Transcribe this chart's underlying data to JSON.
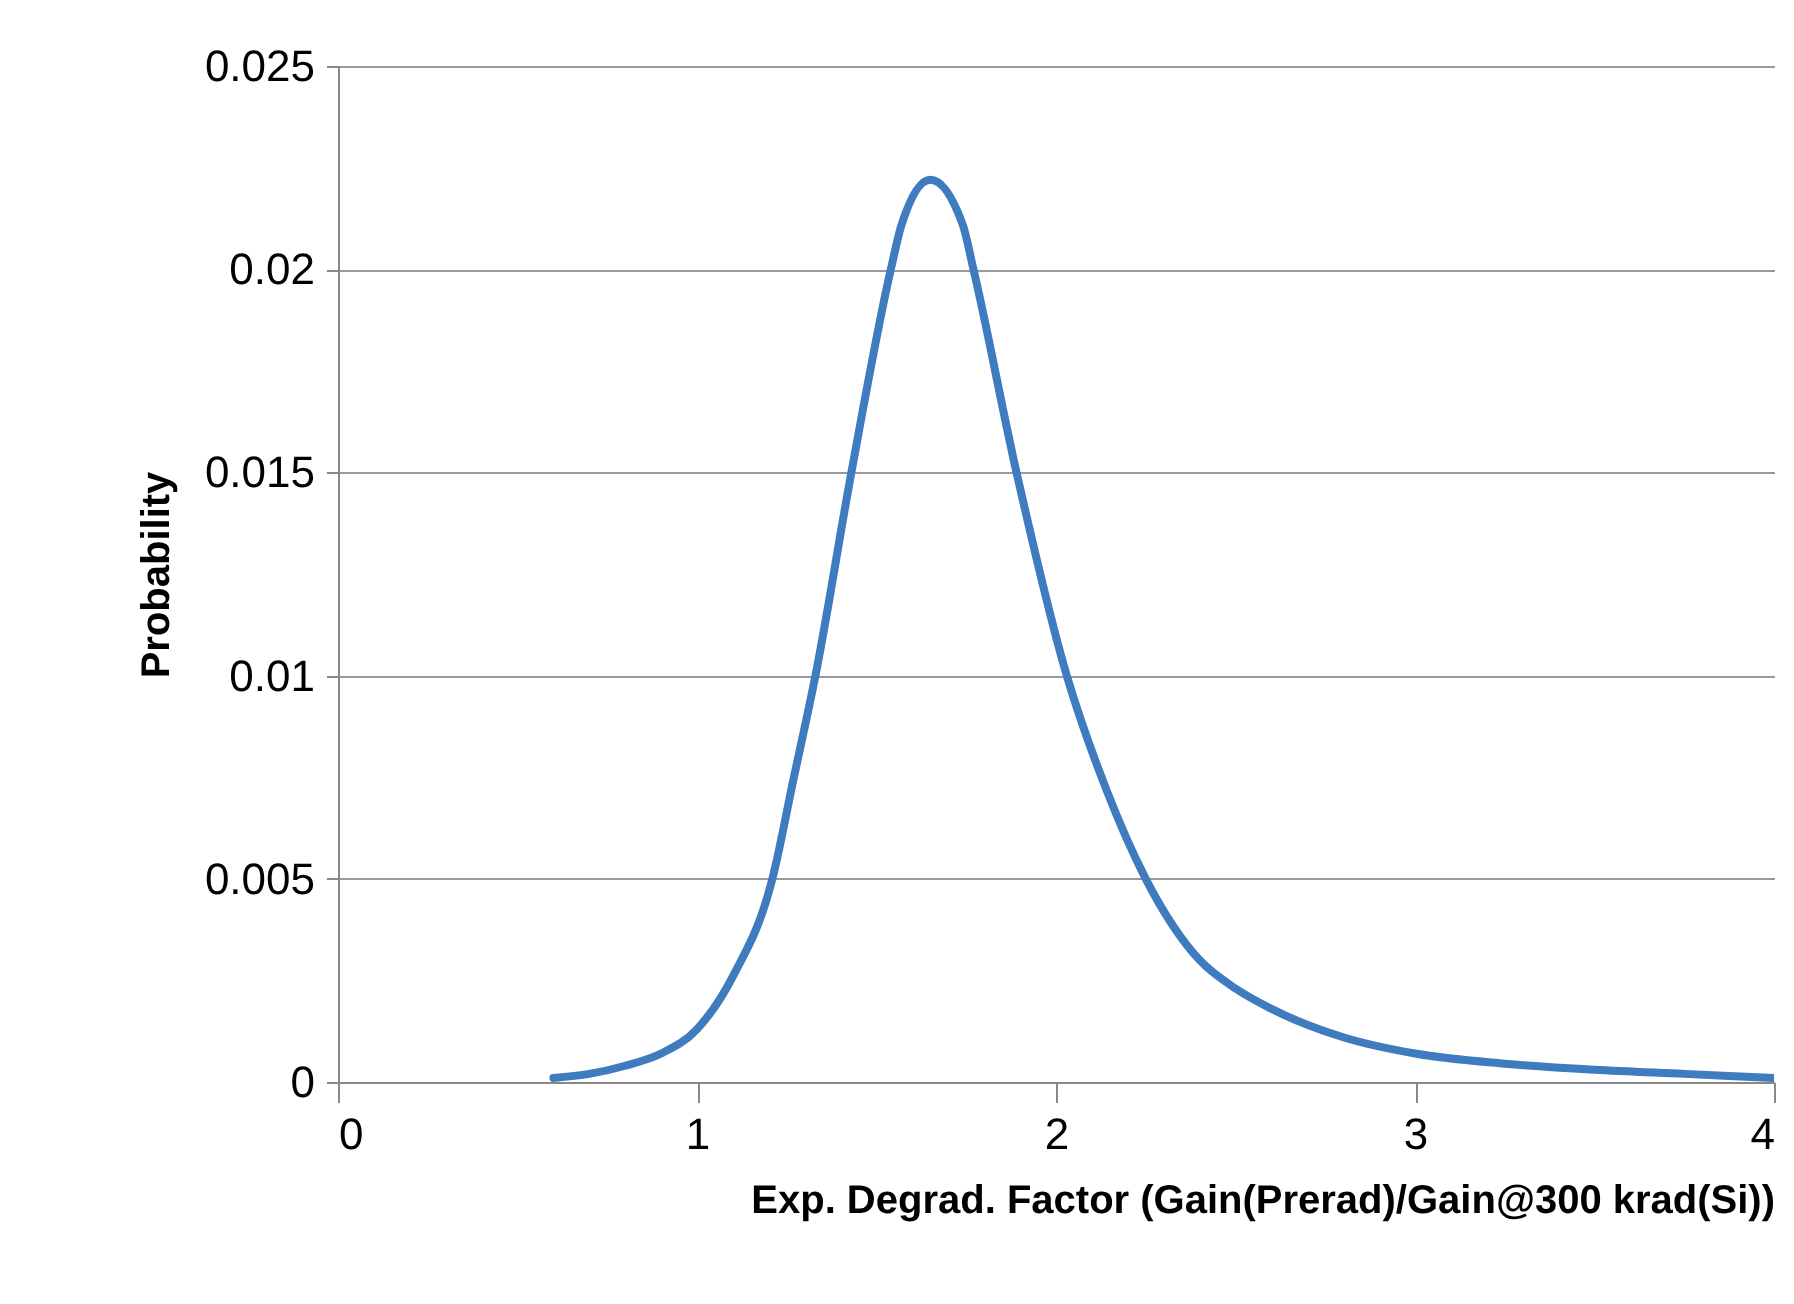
{
  "chart_data": {
    "type": "line",
    "xlabel": "Exp. Degrad. Factor (Gain(Prerad)/Gain@300 krad(Si))",
    "ylabel": "Probability",
    "x": [
      0.6,
      0.7,
      0.8,
      0.9,
      1.0,
      1.1,
      1.21,
      1.27,
      1.33,
      1.43,
      1.54,
      1.57,
      1.65,
      1.74,
      1.77,
      1.89,
      2.03,
      2.14,
      2.25,
      2.4,
      2.5,
      2.6,
      2.8,
      3.0,
      3.25,
      3.5,
      3.75,
      4.0
    ],
    "series": [
      {
        "color": "#3f7bbf",
        "values": [
          0.0001,
          0.0002,
          0.0004,
          0.0007,
          0.0013,
          0.0026,
          0.005,
          0.0075,
          0.01,
          0.015,
          0.02,
          0.0211,
          0.0222,
          0.0211,
          0.02,
          0.015,
          0.01,
          0.0072,
          0.005,
          0.003,
          0.0023,
          0.0018,
          0.0011,
          0.0007,
          0.00045,
          0.0003,
          0.0002,
          0.0001
        ]
      }
    ],
    "xlim": [
      0,
      4
    ],
    "xticks": [
      0,
      1,
      2,
      3,
      4
    ],
    "ylim": [
      0,
      0.025
    ],
    "yticks": [
      0,
      0.005,
      0.01,
      0.015,
      0.02,
      0.025
    ],
    "grid": "y",
    "marker": "none",
    "line_style": "solid"
  }
}
